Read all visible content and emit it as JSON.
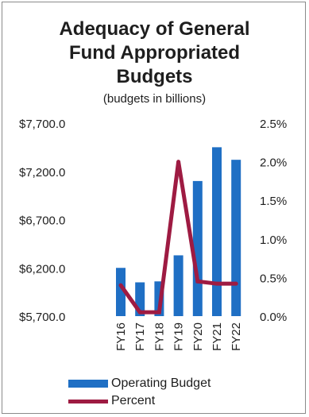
{
  "chart_data": {
    "type": "bar",
    "title": [
      "Adequacy of General",
      "Fund Appropriated",
      "Budgets"
    ],
    "subtitle": "(budgets in billions)",
    "categories": [
      "FY16",
      "FY17",
      "FY18",
      "FY19",
      "FY20",
      "FY21",
      "FY22"
    ],
    "series": [
      {
        "name": "Operating Budget",
        "kind": "bar",
        "axis": "left",
        "color": "#1f6fc4",
        "values": [
          6200,
          6050,
          6060,
          6330,
          7100,
          7450,
          7320
        ]
      },
      {
        "name": "Percent",
        "kind": "line",
        "axis": "right",
        "color": "#9e1b42",
        "values": [
          0.4,
          0.05,
          0.05,
          2.0,
          0.45,
          0.42,
          0.42
        ]
      }
    ],
    "y_left": {
      "min": 5700,
      "max": 7700,
      "ticks": [
        "$7,700.0",
        "$7,200.0",
        "$6,700.0",
        "$6,200.0",
        "$5,700.0"
      ],
      "tick_values": [
        7700,
        7200,
        6700,
        6200,
        5700
      ]
    },
    "y_right": {
      "min": 0,
      "max": 2.5,
      "ticks": [
        "2.5%",
        "2.0%",
        "1.5%",
        "1.0%",
        "0.5%",
        "0.0%"
      ],
      "tick_values": [
        2.5,
        2.0,
        1.5,
        1.0,
        0.5,
        0.0
      ]
    },
    "grid": false,
    "legend": "bottom-left"
  }
}
